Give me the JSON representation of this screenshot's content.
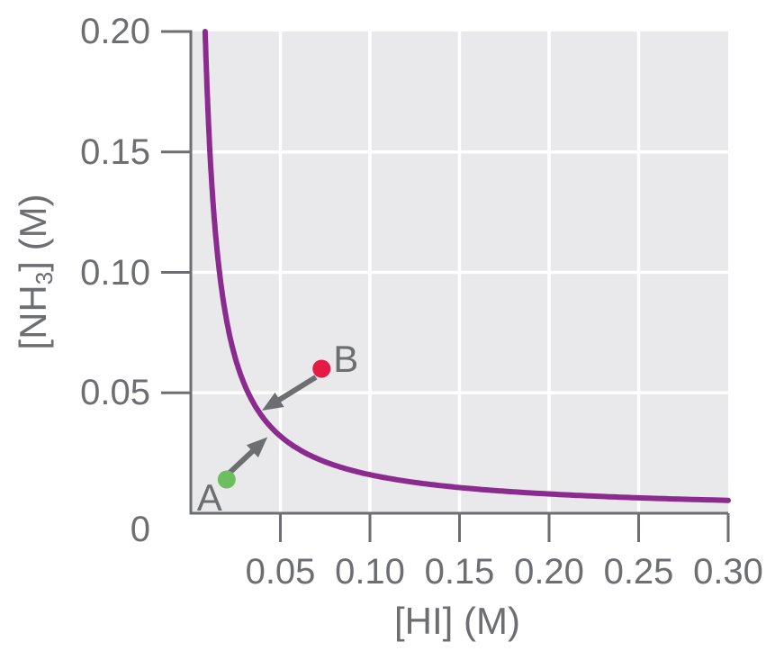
{
  "chart_data": {
    "type": "line",
    "title": "",
    "xlabel": "[HI] (M)",
    "ylabel": "[NH3] (M)",
    "ylabel_parts": {
      "prefix": "[NH",
      "sub": "3",
      "suffix": "] (M)"
    },
    "xlim": [
      0,
      0.3
    ],
    "ylim": [
      0,
      0.2
    ],
    "grid": true,
    "legend_position": "none",
    "origin_label": "0",
    "x_ticks": [
      {
        "value": 0.05,
        "label": "0.05"
      },
      {
        "value": 0.1,
        "label": "0.10"
      },
      {
        "value": 0.15,
        "label": "0.15"
      },
      {
        "value": 0.2,
        "label": "0.20"
      },
      {
        "value": 0.25,
        "label": "0.25"
      },
      {
        "value": 0.3,
        "label": "0.30"
      }
    ],
    "y_ticks": [
      {
        "value": 0.2,
        "label": "0.20"
      },
      {
        "value": 0.15,
        "label": "0.15"
      },
      {
        "value": 0.1,
        "label": "0.10"
      },
      {
        "value": 0.05,
        "label": "0.05"
      }
    ],
    "curve": {
      "name": "equilibrium-curve",
      "relation": "[NH3]x[HI] = K (hyperbola)",
      "K": 0.0016,
      "color": "#8C2B8F",
      "sample_points": [
        [
          0.008,
          0.2
        ],
        [
          0.01,
          0.16
        ],
        [
          0.013,
          0.123
        ],
        [
          0.016,
          0.1
        ],
        [
          0.02,
          0.08
        ],
        [
          0.027,
          0.06
        ],
        [
          0.032,
          0.05
        ],
        [
          0.04,
          0.04
        ],
        [
          0.053,
          0.03
        ],
        [
          0.064,
          0.025
        ],
        [
          0.08,
          0.02
        ],
        [
          0.107,
          0.015
        ],
        [
          0.133,
          0.012
        ],
        [
          0.16,
          0.01
        ],
        [
          0.2,
          0.008
        ],
        [
          0.229,
          0.007
        ],
        [
          0.267,
          0.006
        ],
        [
          0.3,
          0.0053
        ]
      ]
    },
    "points": [
      {
        "label": "A",
        "x": 0.02,
        "y": 0.014,
        "color": "#6CBE60"
      },
      {
        "label": "B",
        "x": 0.073,
        "y": 0.06,
        "color": "#E31B45"
      }
    ],
    "arrows": [
      {
        "name": "arrow-A-to-curve",
        "from": [
          0.0216,
          0.0168
        ],
        "to": [
          0.0428,
          0.0316
        ]
      },
      {
        "name": "arrow-B-to-curve",
        "from": [
          0.0698,
          0.0565
        ],
        "to": [
          0.0397,
          0.0426
        ]
      }
    ],
    "colors": {
      "plot_bg": "#E9E9EB",
      "grid": "#FFFFFF",
      "axis": "#6D6E71",
      "arrow": "#6D6E71",
      "text": "#6D6E71"
    }
  }
}
